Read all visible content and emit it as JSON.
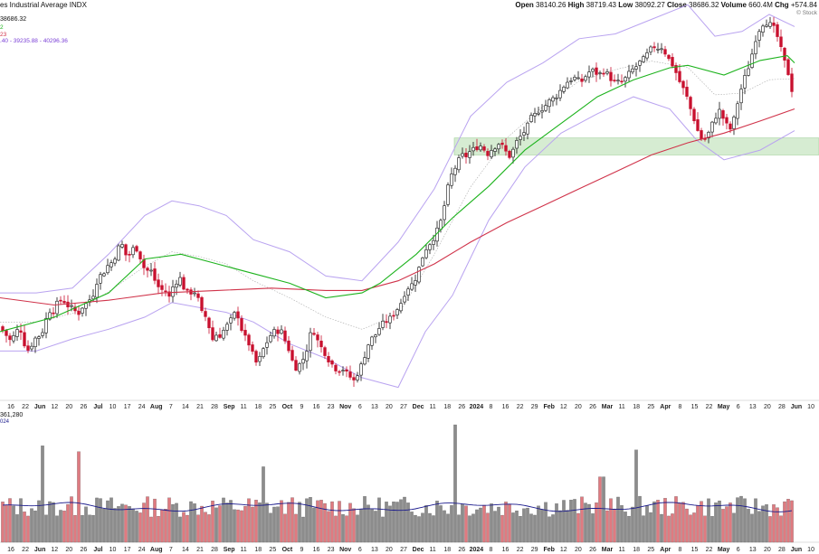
{
  "header": {
    "title": "es Industrial Average INDX",
    "ohlc_text": [
      {
        "k": "Open",
        "v": "38140.26"
      },
      {
        "k": "High",
        "v": "38719.43"
      },
      {
        "k": "Low",
        "v": "38092.27"
      },
      {
        "k": "Close",
        "v": "38686.32"
      },
      {
        "k": "Volume",
        "v": "660.4M"
      },
      {
        "k": "Chg",
        "v": "+574.84"
      }
    ],
    "last_value": "38686.32",
    "ma_fast_label": "2",
    "ma_slow_label": "23",
    "bollinger_label": ".40 - 39235.88 - 40296.36",
    "watermark": "© Stock",
    "volume_label": "361,280",
    "volume_ma_label": "024"
  },
  "colors": {
    "up": "#111111",
    "down": "#c8102e",
    "ma50": "#1db31d",
    "ma200": "#d0334a",
    "bollinger": "#b9a3f0",
    "bollinger_mid": "#aaaaaa",
    "support_zone": "#d6ecd2",
    "vol_up": "#8c8c8c",
    "vol_down": "#e07a80",
    "vol_ma": "#1a1a8c"
  },
  "chart_data": {
    "type": "candlestick",
    "y_range": [
      32300,
      40400
    ],
    "support_zone": [
      37350,
      37700
    ],
    "x_ticks": [
      "16",
      "22",
      "Jun",
      "12",
      "20",
      "26",
      "Jul",
      "10",
      "17",
      "24",
      "Aug",
      "7",
      "14",
      "21",
      "28",
      "Sep",
      "11",
      "18",
      "25",
      "Oct",
      "9",
      "16",
      "23",
      "Nov",
      "6",
      "13",
      "20",
      "27",
      "Dec",
      "11",
      "18",
      "26",
      "2024",
      "8",
      "16",
      "22",
      "29",
      "Feb",
      "12",
      "20",
      "26",
      "Mar",
      "11",
      "18",
      "25",
      "Apr",
      "8",
      "15",
      "22",
      "May",
      "6",
      "13",
      "20",
      "28",
      "Jun",
      "10"
    ],
    "close_path": [
      [
        0,
        33800
      ],
      [
        6,
        33650
      ],
      [
        12,
        33500
      ],
      [
        18,
        33700
      ],
      [
        22,
        33800
      ],
      [
        26,
        33500
      ],
      [
        30,
        33300
      ],
      [
        34,
        33400
      ],
      [
        38,
        33550
      ],
      [
        46,
        33650
      ],
      [
        50,
        33900
      ],
      [
        54,
        34150
      ],
      [
        58,
        34100
      ],
      [
        62,
        34250
      ],
      [
        66,
        34350
      ],
      [
        70,
        34350
      ],
      [
        74,
        34250
      ],
      [
        78,
        34200
      ],
      [
        82,
        34150
      ],
      [
        86,
        34050
      ],
      [
        90,
        34200
      ],
      [
        94,
        34250
      ],
      [
        98,
        34350
      ],
      [
        102,
        34400
      ],
      [
        106,
        34700
      ],
      [
        110,
        34850
      ],
      [
        114,
        34900
      ],
      [
        118,
        35050
      ],
      [
        122,
        35100
      ],
      [
        126,
        35200
      ],
      [
        130,
        35400
      ],
      [
        134,
        35550
      ],
      [
        138,
        35300
      ],
      [
        142,
        35250
      ],
      [
        146,
        35400
      ],
      [
        150,
        35450
      ],
      [
        154,
        35300
      ],
      [
        158,
        35050
      ],
      [
        162,
        34950
      ],
      [
        166,
        35000
      ],
      [
        170,
        34800
      ],
      [
        174,
        34650
      ],
      [
        178,
        34550
      ],
      [
        182,
        34600
      ],
      [
        186,
        34350
      ],
      [
        190,
        34600
      ],
      [
        194,
        34700
      ],
      [
        198,
        34850
      ],
      [
        202,
        34650
      ],
      [
        206,
        34500
      ],
      [
        210,
        34500
      ],
      [
        214,
        34550
      ],
      [
        218,
        34450
      ],
      [
        222,
        34100
      ],
      [
        226,
        34050
      ],
      [
        230,
        33900
      ],
      [
        234,
        33500
      ],
      [
        238,
        33650
      ],
      [
        242,
        33600
      ],
      [
        246,
        33700
      ],
      [
        250,
        33800
      ],
      [
        254,
        33900
      ],
      [
        258,
        34050
      ],
      [
        262,
        34100
      ],
      [
        266,
        33800
      ],
      [
        270,
        33600
      ],
      [
        274,
        33500
      ],
      [
        278,
        33300
      ],
      [
        282,
        33050
      ],
      [
        286,
        33100
      ],
      [
        290,
        33300
      ],
      [
        294,
        33450
      ],
      [
        298,
        33600
      ],
      [
        302,
        33700
      ],
      [
        306,
        33700
      ],
      [
        310,
        33750
      ],
      [
        314,
        33550
      ],
      [
        318,
        33400
      ],
      [
        322,
        33150
      ],
      [
        326,
        32950
      ],
      [
        330,
        33000
      ],
      [
        334,
        33100
      ],
      [
        338,
        33250
      ],
      [
        342,
        33600
      ],
      [
        346,
        33750
      ],
      [
        350,
        33550
      ],
      [
        354,
        33400
      ],
      [
        358,
        33300
      ],
      [
        362,
        33150
      ],
      [
        366,
        33050
      ],
      [
        370,
        32950
      ],
      [
        374,
        32900
      ],
      [
        378,
        32950
      ],
      [
        382,
        32850
      ],
      [
        386,
        32800
      ],
      [
        390,
        32650
      ],
      [
        394,
        32800
      ],
      [
        398,
        32950
      ],
      [
        402,
        33150
      ],
      [
        406,
        33400
      ],
      [
        410,
        33550
      ],
      [
        414,
        33600
      ],
      [
        418,
        33750
      ],
      [
        422,
        33850
      ],
      [
        426,
        33900
      ],
      [
        430,
        33950
      ],
      [
        434,
        34050
      ],
      [
        438,
        34150
      ],
      [
        442,
        34250
      ],
      [
        446,
        34450
      ],
      [
        450,
        34600
      ],
      [
        454,
        34650
      ],
      [
        458,
        34750
      ],
      [
        462,
        34950
      ],
      [
        466,
        35200
      ],
      [
        470,
        35400
      ],
      [
        474,
        35500
      ],
      [
        478,
        35600
      ],
      [
        482,
        35750
      ],
      [
        486,
        35900
      ],
      [
        490,
        36200
      ],
      [
        494,
        36600
      ],
      [
        498,
        36900
      ],
      [
        502,
        37050
      ],
      [
        506,
        37200
      ],
      [
        510,
        37350
      ],
      [
        514,
        37300
      ],
      [
        518,
        37400
      ],
      [
        522,
        37450
      ],
      [
        526,
        37500
      ],
      [
        530,
        37550
      ],
      [
        534,
        37500
      ],
      [
        538,
        37350
      ],
      [
        542,
        37450
      ],
      [
        546,
        37500
      ],
      [
        550,
        37600
      ],
      [
        554,
        37550
      ],
      [
        558,
        37450
      ],
      [
        562,
        37300
      ],
      [
        566,
        37400
      ],
      [
        570,
        37600
      ],
      [
        574,
        37700
      ],
      [
        578,
        37800
      ],
      [
        582,
        37900
      ],
      [
        586,
        38100
      ],
      [
        590,
        38150
      ],
      [
        594,
        38250
      ],
      [
        598,
        38300
      ],
      [
        602,
        38350
      ],
      [
        606,
        38450
      ],
      [
        610,
        38500
      ],
      [
        614,
        38550
      ],
      [
        618,
        38650
      ],
      [
        622,
        38750
      ],
      [
        626,
        38850
      ],
      [
        630,
        38900
      ],
      [
        634,
        38950
      ],
      [
        638,
        38900
      ],
      [
        642,
        38850
      ],
      [
        646,
        38950
      ],
      [
        650,
        39050
      ],
      [
        654,
        39100
      ],
      [
        658,
        39050
      ],
      [
        662,
        39000
      ],
      [
        666,
        39100
      ],
      [
        670,
        39050
      ],
      [
        674,
        38950
      ],
      [
        678,
        38850
      ],
      [
        682,
        38850
      ],
      [
        686,
        38850
      ],
      [
        690,
        38900
      ],
      [
        694,
        39000
      ],
      [
        698,
        39100
      ],
      [
        702,
        39150
      ],
      [
        706,
        39250
      ],
      [
        710,
        39300
      ],
      [
        714,
        39400
      ],
      [
        718,
        39500
      ],
      [
        722,
        39600
      ],
      [
        726,
        39550
      ],
      [
        730,
        39600
      ],
      [
        734,
        39500
      ],
      [
        738,
        39350
      ],
      [
        742,
        39250
      ],
      [
        746,
        39100
      ],
      [
        750,
        38900
      ],
      [
        754,
        38750
      ],
      [
        758,
        38600
      ],
      [
        762,
        38350
      ],
      [
        766,
        38150
      ],
      [
        770,
        37900
      ],
      [
        774,
        37700
      ],
      [
        778,
        37650
      ],
      [
        782,
        37750
      ],
      [
        786,
        37950
      ],
      [
        790,
        38100
      ],
      [
        794,
        38300
      ],
      [
        798,
        38150
      ],
      [
        802,
        38000
      ],
      [
        806,
        37850
      ],
      [
        810,
        38000
      ],
      [
        814,
        38350
      ],
      [
        818,
        38650
      ],
      [
        822,
        38900
      ],
      [
        826,
        39100
      ],
      [
        830,
        39350
      ],
      [
        834,
        39700
      ],
      [
        838,
        39900
      ],
      [
        842,
        40050
      ],
      [
        846,
        40100
      ],
      [
        850,
        40050
      ],
      [
        854,
        40000
      ],
      [
        858,
        39850
      ],
      [
        862,
        39600
      ],
      [
        866,
        39300
      ],
      [
        870,
        39150
      ],
      [
        874,
        38700
      ],
      [
        878,
        38686
      ]
    ],
    "ma50": [
      [
        0,
        33700
      ],
      [
        60,
        34000
      ],
      [
        120,
        34500
      ],
      [
        160,
        35200
      ],
      [
        200,
        35300
      ],
      [
        240,
        35100
      ],
      [
        280,
        34900
      ],
      [
        320,
        34700
      ],
      [
        360,
        34400
      ],
      [
        400,
        34500
      ],
      [
        420,
        34700
      ],
      [
        460,
        35300
      ],
      [
        500,
        36050
      ],
      [
        540,
        36700
      ],
      [
        580,
        37450
      ],
      [
        620,
        38000
      ],
      [
        660,
        38550
      ],
      [
        700,
        38900
      ],
      [
        740,
        39150
      ],
      [
        760,
        39200
      ],
      [
        800,
        39000
      ],
      [
        840,
        39300
      ],
      [
        870,
        39400
      ],
      [
        878,
        39250
      ]
    ],
    "ma200": [
      [
        0,
        34400
      ],
      [
        60,
        34250
      ],
      [
        120,
        34350
      ],
      [
        180,
        34500
      ],
      [
        240,
        34550
      ],
      [
        300,
        34600
      ],
      [
        360,
        34550
      ],
      [
        400,
        34550
      ],
      [
        440,
        34750
      ],
      [
        480,
        35100
      ],
      [
        520,
        35550
      ],
      [
        560,
        35950
      ],
      [
        600,
        36300
      ],
      [
        640,
        36650
      ],
      [
        680,
        37000
      ],
      [
        720,
        37350
      ],
      [
        760,
        37600
      ],
      [
        800,
        37800
      ],
      [
        840,
        38050
      ],
      [
        878,
        38300
      ]
    ],
    "bb_upper": [
      [
        0,
        34500
      ],
      [
        40,
        34500
      ],
      [
        80,
        34600
      ],
      [
        120,
        35300
      ],
      [
        160,
        36100
      ],
      [
        190,
        36400
      ],
      [
        220,
        36300
      ],
      [
        250,
        36100
      ],
      [
        280,
        35600
      ],
      [
        320,
        35350
      ],
      [
        360,
        34850
      ],
      [
        400,
        34750
      ],
      [
        440,
        35550
      ],
      [
        480,
        36650
      ],
      [
        520,
        38150
      ],
      [
        560,
        38850
      ],
      [
        600,
        39250
      ],
      [
        640,
        39750
      ],
      [
        680,
        39850
      ],
      [
        720,
        40150
      ],
      [
        760,
        40450
      ],
      [
        790,
        39800
      ],
      [
        820,
        39900
      ],
      [
        850,
        40250
      ],
      [
        878,
        40000
      ]
    ],
    "bb_lower": [
      [
        0,
        33300
      ],
      [
        40,
        33300
      ],
      [
        80,
        33550
      ],
      [
        120,
        33750
      ],
      [
        160,
        34000
      ],
      [
        190,
        34300
      ],
      [
        220,
        34200
      ],
      [
        250,
        34100
      ],
      [
        280,
        33900
      ],
      [
        320,
        33450
      ],
      [
        360,
        33150
      ],
      [
        400,
        32750
      ],
      [
        440,
        32550
      ],
      [
        470,
        33700
      ],
      [
        500,
        34450
      ],
      [
        540,
        36000
      ],
      [
        580,
        37100
      ],
      [
        620,
        37800
      ],
      [
        660,
        38200
      ],
      [
        700,
        38550
      ],
      [
        740,
        38300
      ],
      [
        770,
        37650
      ],
      [
        800,
        37250
      ],
      [
        840,
        37450
      ],
      [
        878,
        37850
      ]
    ],
    "volume_scale_max": 1400,
    "volume_avg": 420
  }
}
